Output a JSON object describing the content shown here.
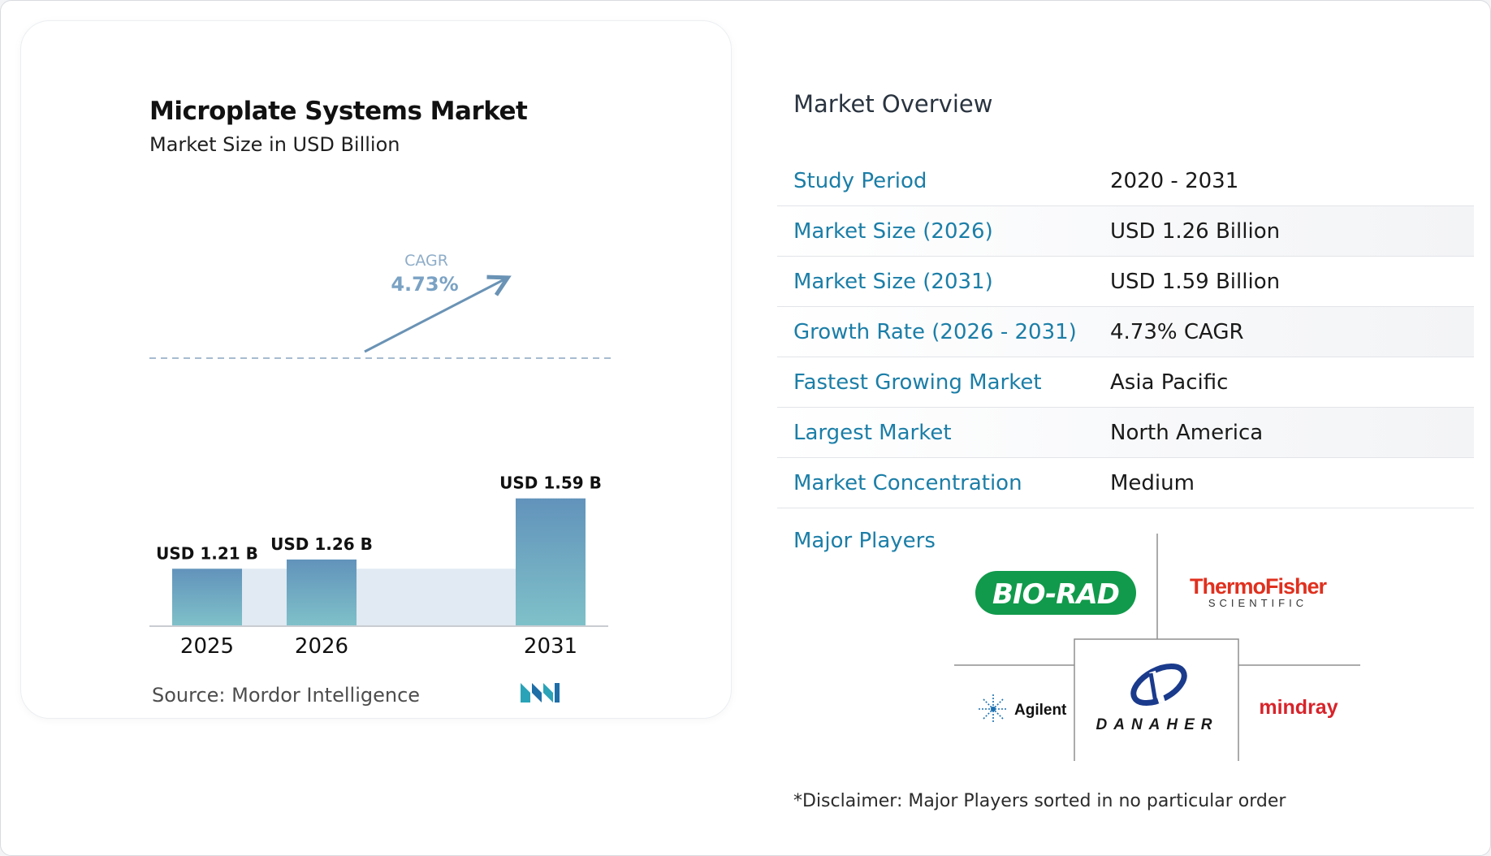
{
  "chart": {
    "title": "Microplate Systems Market",
    "subtitle": "Market Size in USD Billion",
    "source": "Source:  Mordor Intelligence",
    "cagr_label": "CAGR",
    "cagr_value": "4.73%"
  },
  "chart_data": {
    "type": "bar",
    "title": "Microplate Systems Market",
    "subtitle": "Market Size in USD Billion",
    "categories": [
      "2025",
      "2026",
      "2031"
    ],
    "values": [
      1.21,
      1.26,
      1.59
    ],
    "data_labels": [
      "USD 1.21 B",
      "USD 1.26 B",
      "USD 1.59 B"
    ],
    "cagr": "4.73%",
    "colors": {
      "bar_top": "#6293bb",
      "bar_bottom": "#7fc1c9",
      "band": "#e1e9f2",
      "dashed": "#8aa6c0",
      "arrow": "#6a93b5",
      "cagr_text": "#8eadc8"
    }
  },
  "overview": {
    "title": "Market Overview",
    "rows": [
      {
        "label": "Study Period",
        "value": "2020 - 2031"
      },
      {
        "label": "Market Size (2026)",
        "value": "USD 1.26 Billion"
      },
      {
        "label": "Market Size (2031)",
        "value": "USD 1.59 Billion"
      },
      {
        "label": "Growth Rate (2026 - 2031)",
        "value": "4.73% CAGR"
      },
      {
        "label": "Fastest Growing Market",
        "value": "Asia Pacific"
      },
      {
        "label": "Largest Market",
        "value": "North America"
      },
      {
        "label": "Market Concentration",
        "value": "Medium"
      }
    ],
    "players_label": "Major Players",
    "players": {
      "biorad": "BIO-RAD",
      "thermo_top": "ThermoFisher",
      "thermo_bottom": "SCIENTIFIC",
      "agilent": "Agilent",
      "danaher": "DANAHER",
      "mindray": "mindray"
    },
    "disclaimer": "*Disclaimer: Major Players sorted in no particular order"
  },
  "colors": {
    "accent": "#1b7ea7",
    "biorad_green": "#119a4b",
    "thermo_red": "#e0301e",
    "mindray_red": "#d8232a",
    "danaher_blue": "#1a3a8c"
  }
}
